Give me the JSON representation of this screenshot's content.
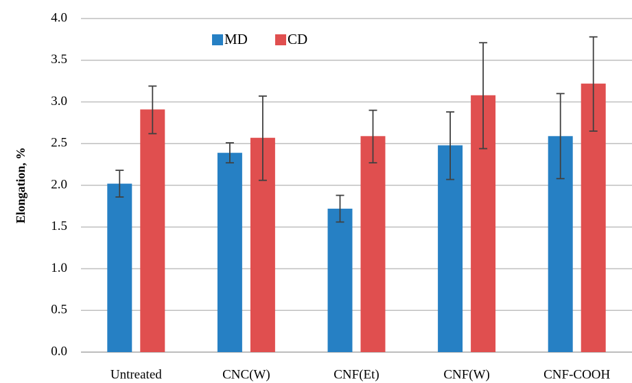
{
  "chart_data": {
    "type": "bar",
    "title": "",
    "xlabel": "",
    "ylabel": "Elongation, %",
    "ylim": [
      0,
      4.0
    ],
    "yticks": [
      "0.0",
      "0.5",
      "1.0",
      "1.5",
      "2.0",
      "2.5",
      "3.0",
      "3.5",
      "4.0"
    ],
    "grid": true,
    "legend_position": "top-left",
    "categories": [
      "Untreated",
      "CNC(W)",
      "CNF(Et)",
      "CNF(W)",
      "CNF-COOH"
    ],
    "series": [
      {
        "name": "MD",
        "color": "#2680C4",
        "values": [
          2.02,
          2.39,
          1.72,
          2.48,
          2.59
        ],
        "error_low": [
          1.86,
          2.27,
          1.56,
          2.07,
          2.08
        ],
        "error_high": [
          2.18,
          2.51,
          1.88,
          2.88,
          3.1
        ]
      },
      {
        "name": "CD",
        "color": "#E04F4F",
        "values": [
          2.91,
          2.57,
          2.59,
          3.08,
          3.22
        ],
        "error_low": [
          2.62,
          2.06,
          2.27,
          2.44,
          2.65
        ],
        "error_high": [
          3.19,
          3.07,
          2.9,
          3.71,
          3.78
        ]
      }
    ]
  }
}
